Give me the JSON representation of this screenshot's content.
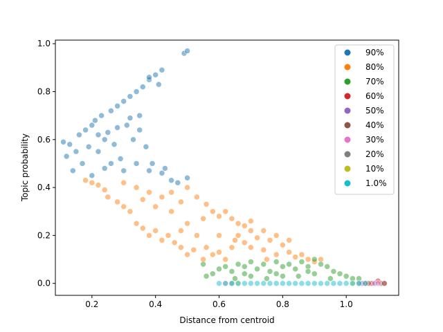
{
  "chart_data": {
    "type": "scatter",
    "title": "",
    "xlabel": "Distance from centroid",
    "ylabel": "Topic probability",
    "xlim": [
      0.085,
      1.165
    ],
    "ylim": [
      -0.05,
      1.015
    ],
    "xticks": [
      0.2,
      0.4,
      0.6,
      0.8,
      1.0
    ],
    "xtick_labels": [
      "0.2",
      "0.4",
      "0.6",
      "0.8",
      "1.0"
    ],
    "yticks": [
      0.0,
      0.2,
      0.4,
      0.6,
      0.8,
      1.0
    ],
    "ytick_labels": [
      "0.0",
      "0.2",
      "0.4",
      "0.6",
      "0.8",
      "1.0"
    ],
    "grid": false,
    "legend_position": "top-right",
    "point_alpha": 0.5,
    "series": [
      {
        "name": "90%",
        "color": "#1f77b4",
        "points": [
          [
            0.11,
            0.59
          ],
          [
            0.12,
            0.53
          ],
          [
            0.13,
            0.58
          ],
          [
            0.14,
            0.47
          ],
          [
            0.15,
            0.55
          ],
          [
            0.16,
            0.62
          ],
          [
            0.17,
            0.5
          ],
          [
            0.18,
            0.64
          ],
          [
            0.19,
            0.57
          ],
          [
            0.2,
            0.66
          ],
          [
            0.21,
            0.68
          ],
          [
            0.22,
            0.62
          ],
          [
            0.22,
            0.55
          ],
          [
            0.23,
            0.7
          ],
          [
            0.24,
            0.48
          ],
          [
            0.25,
            0.63
          ],
          [
            0.26,
            0.72
          ],
          [
            0.27,
            0.58
          ],
          [
            0.28,
            0.74
          ],
          [
            0.29,
            0.52
          ],
          [
            0.3,
            0.76
          ],
          [
            0.31,
            0.66
          ],
          [
            0.32,
            0.78
          ],
          [
            0.33,
            0.6
          ],
          [
            0.34,
            0.8
          ],
          [
            0.35,
            0.7
          ],
          [
            0.36,
            0.82
          ],
          [
            0.37,
            0.57
          ],
          [
            0.38,
            0.85
          ],
          [
            0.39,
            0.5
          ],
          [
            0.4,
            0.87
          ],
          [
            0.42,
            0.89
          ],
          [
            0.38,
            0.86
          ],
          [
            0.41,
            0.83
          ],
          [
            0.26,
            0.5
          ],
          [
            0.3,
            0.47
          ],
          [
            0.34,
            0.5
          ],
          [
            0.38,
            0.47
          ],
          [
            0.42,
            0.46
          ],
          [
            0.45,
            0.43
          ],
          [
            0.47,
            0.42
          ],
          [
            0.5,
            0.44
          ],
          [
            0.28,
            0.65
          ],
          [
            0.32,
            0.69
          ],
          [
            0.24,
            0.6
          ],
          [
            0.35,
            0.64
          ],
          [
            0.43,
            0.48
          ],
          [
            0.2,
            0.45
          ],
          [
            0.49,
            0.96
          ],
          [
            0.5,
            0.97
          ]
        ]
      },
      {
        "name": "80%",
        "color": "#ff7f0e",
        "points": [
          [
            0.18,
            0.43
          ],
          [
            0.2,
            0.42
          ],
          [
            0.22,
            0.41
          ],
          [
            0.24,
            0.39
          ],
          [
            0.25,
            0.36
          ],
          [
            0.28,
            0.34
          ],
          [
            0.3,
            0.32
          ],
          [
            0.32,
            0.3
          ],
          [
            0.34,
            0.25
          ],
          [
            0.36,
            0.23
          ],
          [
            0.38,
            0.2
          ],
          [
            0.4,
            0.22
          ],
          [
            0.42,
            0.18
          ],
          [
            0.44,
            0.2
          ],
          [
            0.46,
            0.17
          ],
          [
            0.48,
            0.15
          ],
          [
            0.5,
            0.12
          ],
          [
            0.52,
            0.14
          ],
          [
            0.55,
            0.1
          ],
          [
            0.58,
            0.12
          ],
          [
            0.6,
            0.13
          ],
          [
            0.62,
            0.1
          ],
          [
            0.64,
            0.15
          ],
          [
            0.66,
            0.2
          ],
          [
            0.68,
            0.17
          ],
          [
            0.7,
            0.22
          ],
          [
            0.72,
            0.19
          ],
          [
            0.74,
            0.14
          ],
          [
            0.76,
            0.18
          ],
          [
            0.78,
            0.12
          ],
          [
            0.8,
            0.16
          ],
          [
            0.82,
            0.13
          ],
          [
            0.84,
            0.11
          ],
          [
            0.86,
            0.12
          ],
          [
            0.88,
            0.1
          ],
          [
            0.9,
            0.09
          ],
          [
            0.92,
            0.1
          ],
          [
            0.3,
            0.42
          ],
          [
            0.34,
            0.4
          ],
          [
            0.38,
            0.38
          ],
          [
            0.42,
            0.36
          ],
          [
            0.45,
            0.38
          ],
          [
            0.48,
            0.34
          ],
          [
            0.5,
            0.4
          ],
          [
            0.53,
            0.36
          ],
          [
            0.56,
            0.33
          ],
          [
            0.58,
            0.3
          ],
          [
            0.6,
            0.28
          ],
          [
            0.62,
            0.3
          ],
          [
            0.64,
            0.27
          ],
          [
            0.66,
            0.25
          ],
          [
            0.68,
            0.24
          ],
          [
            0.7,
            0.26
          ],
          [
            0.74,
            0.22
          ],
          [
            0.78,
            0.2
          ],
          [
            0.82,
            0.18
          ],
          [
            0.5,
            0.25
          ],
          [
            0.55,
            0.27
          ],
          [
            0.45,
            0.3
          ],
          [
            0.4,
            0.32
          ],
          [
            0.36,
            0.35
          ],
          [
            0.48,
            0.22
          ],
          [
            0.53,
            0.2
          ],
          [
            0.6,
            0.2
          ],
          [
            0.65,
            0.18
          ],
          [
            0.7,
            0.15
          ],
          [
            0.75,
            0.1
          ],
          [
            0.56,
            0.15
          ]
        ]
      },
      {
        "name": "70%",
        "color": "#2ca02c",
        "points": [
          [
            0.55,
            0.08
          ],
          [
            0.56,
            0.03
          ],
          [
            0.58,
            0.04
          ],
          [
            0.6,
            0.06
          ],
          [
            0.62,
            0.07
          ],
          [
            0.64,
            0.05
          ],
          [
            0.66,
            0.08
          ],
          [
            0.68,
            0.07
          ],
          [
            0.7,
            0.09
          ],
          [
            0.72,
            0.06
          ],
          [
            0.74,
            0.08
          ],
          [
            0.76,
            0.05
          ],
          [
            0.78,
            0.09
          ],
          [
            0.8,
            0.07
          ],
          [
            0.82,
            0.08
          ],
          [
            0.84,
            0.06
          ],
          [
            0.86,
            0.09
          ],
          [
            0.88,
            0.07
          ],
          [
            0.9,
            0.1
          ],
          [
            0.92,
            0.08
          ],
          [
            0.94,
            0.07
          ],
          [
            0.96,
            0.05
          ],
          [
            0.98,
            0.04
          ],
          [
            1.0,
            0.03
          ],
          [
            1.02,
            0.02
          ],
          [
            1.04,
            0.02
          ],
          [
            0.65,
            0.02
          ],
          [
            0.7,
            0.03
          ],
          [
            0.75,
            0.02
          ],
          [
            0.8,
            0.03
          ],
          [
            0.85,
            0.03
          ],
          [
            0.9,
            0.04
          ],
          [
            0.95,
            0.02
          ],
          [
            0.68,
            0.04
          ],
          [
            0.78,
            0.04
          ],
          [
            0.88,
            0.05
          ]
        ]
      },
      {
        "name": "60%",
        "color": "#d62728",
        "points": [
          [
            1.06,
            0.0
          ],
          [
            1.08,
            0.0
          ],
          [
            1.1,
            0.01
          ],
          [
            1.12,
            0.0
          ]
        ]
      },
      {
        "name": "50%",
        "color": "#9467bd",
        "points": [
          [
            1.05,
            0.0
          ],
          [
            1.09,
            0.0
          ]
        ]
      },
      {
        "name": "40%",
        "color": "#8c564b",
        "points": [
          [
            1.07,
            0.0
          ],
          [
            1.11,
            0.0
          ],
          [
            1.12,
            0.0
          ]
        ]
      },
      {
        "name": "30%",
        "color": "#e377c2",
        "points": [
          [
            0.62,
            0.0
          ],
          [
            1.1,
            0.0
          ]
        ]
      },
      {
        "name": "20%",
        "color": "#7f7f7f",
        "points": [
          [
            0.64,
            0.0
          ],
          [
            1.04,
            0.0
          ]
        ]
      },
      {
        "name": "10%",
        "color": "#bcbd22",
        "points": [
          [
            0.66,
            0.0
          ],
          [
            1.02,
            0.0
          ]
        ]
      },
      {
        "name": "1.0%",
        "color": "#17becf",
        "points": [
          [
            0.6,
            0.0
          ],
          [
            0.62,
            0.0
          ],
          [
            0.64,
            0.0
          ],
          [
            0.66,
            0.0
          ],
          [
            0.68,
            0.0
          ],
          [
            0.7,
            0.0
          ],
          [
            0.72,
            0.0
          ],
          [
            0.74,
            0.0
          ],
          [
            0.76,
            0.0
          ],
          [
            0.78,
            0.0
          ],
          [
            0.8,
            0.0
          ],
          [
            0.82,
            0.0
          ],
          [
            0.84,
            0.0
          ],
          [
            0.86,
            0.0
          ],
          [
            0.88,
            0.0
          ],
          [
            0.9,
            0.0
          ],
          [
            0.92,
            0.0
          ],
          [
            0.94,
            0.0
          ],
          [
            0.96,
            0.0
          ],
          [
            0.98,
            0.0
          ],
          [
            1.0,
            0.0
          ],
          [
            1.02,
            0.0
          ],
          [
            1.04,
            0.0
          ],
          [
            1.06,
            0.0
          ]
        ]
      }
    ]
  }
}
